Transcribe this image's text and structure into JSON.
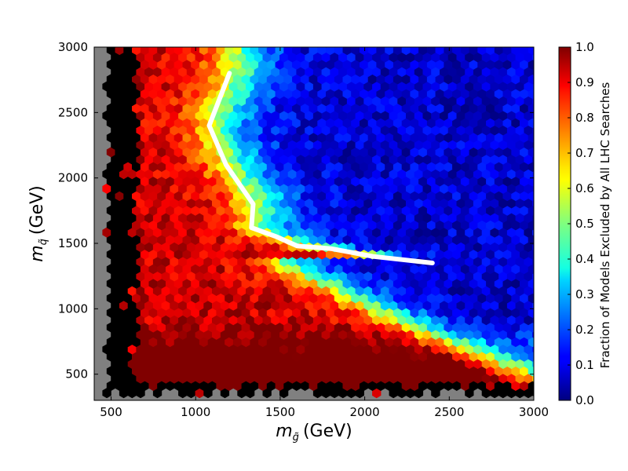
{
  "chart_data": {
    "type": "heatmap",
    "subtype": "hexbin",
    "xlabel_symbol": "m",
    "xlabel_sub": "g̃",
    "xlabel_unit": "(GeV)",
    "ylabel_symbol": "m",
    "ylabel_sub": "q̃",
    "ylabel_unit": "(GeV)",
    "xlim": [
      400,
      3000
    ],
    "ylim": [
      300,
      3000
    ],
    "x_ticks": [
      "500",
      "1000",
      "1500",
      "2000",
      "2500",
      "3000"
    ],
    "y_ticks": [
      "500",
      "1000",
      "1500",
      "2000",
      "2500",
      "3000"
    ],
    "colorbar": {
      "label": "Fraction of Models Excluded by All LHC Searches",
      "range": [
        0.0,
        1.0
      ],
      "ticks": [
        "0.0",
        "0.1",
        "0.2",
        "0.3",
        "0.4",
        "0.5",
        "0.6",
        "0.7",
        "0.8",
        "0.9",
        "1.0"
      ],
      "colormap": "jet"
    },
    "missing_color": "#808080",
    "high_color": "#000000",
    "contour": {
      "color": "#ffffff",
      "points": [
        [
          1200,
          2800
        ],
        [
          1080,
          2400
        ],
        [
          1180,
          2100
        ],
        [
          1340,
          1800
        ],
        [
          1330,
          1620
        ],
        [
          1480,
          1550
        ],
        [
          1600,
          1480
        ],
        [
          1800,
          1460
        ],
        [
          2050,
          1400
        ],
        [
          2400,
          1350
        ]
      ]
    },
    "regions": {
      "left_black_boundary_gev": 650,
      "bottom_black_boundary_gev": 420,
      "note": "fraction ~1.0 for small gluino mass, decreasing toward high mass"
    }
  }
}
